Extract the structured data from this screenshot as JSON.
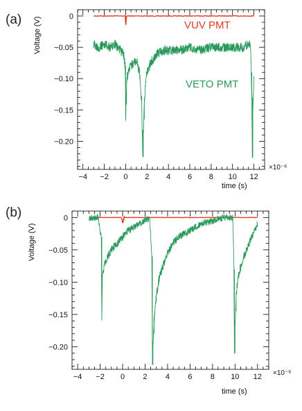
{
  "chart_data": [
    {
      "type": "line",
      "panel_label": "(a)",
      "xlabel": "time (s)",
      "ylabel": "Voltage (V)",
      "x_multiplier": "×10⁻⁶",
      "xlim": [
        -4.5,
        13
      ],
      "ylim": [
        -0.245,
        0.01
      ],
      "x_ticks": [
        -4,
        -2,
        0,
        2,
        4,
        6,
        8,
        10,
        12
      ],
      "x_tick_labels": [
        "−4",
        "−2",
        "0",
        "2",
        "4",
        "6",
        "8",
        "10",
        "12"
      ],
      "y_ticks": [
        0,
        -0.05,
        -0.1,
        -0.15,
        -0.2
      ],
      "y_tick_labels": [
        "0",
        "−0.05",
        "−0.10",
        "−0.15",
        "−0.20"
      ],
      "grid": false,
      "series": [
        {
          "name": "VUV PMT",
          "color": "#e8351e",
          "annotation": "VUV PMT",
          "x": [
            -3.0,
            -0.05,
            0.0,
            0.02,
            0.05,
            0.1,
            12.0
          ],
          "y": [
            0.0,
            0.0,
            -0.012,
            -0.014,
            -0.004,
            0.0,
            0.0
          ]
        },
        {
          "name": "VETO PMT",
          "color": "#2a9a5c",
          "annotation": "VETO PMT",
          "x": [
            -3.0,
            -2.5,
            -2.0,
            -1.5,
            -1.0,
            -0.5,
            -0.2,
            -0.05,
            0.0,
            0.08,
            0.2,
            0.5,
            1.0,
            1.3,
            1.5,
            1.6,
            1.65,
            1.75,
            1.9,
            2.1,
            2.5,
            3.0,
            3.5,
            4.0,
            5.0,
            6.0,
            7.0,
            8.0,
            9.0,
            10.0,
            11.0,
            11.5,
            11.7,
            11.8,
            11.85,
            11.9,
            12.0
          ],
          "y": [
            -0.045,
            -0.05,
            -0.045,
            -0.05,
            -0.045,
            -0.055,
            -0.06,
            -0.08,
            -0.16,
            -0.11,
            -0.09,
            -0.08,
            -0.07,
            -0.09,
            -0.14,
            -0.225,
            -0.19,
            -0.14,
            -0.1,
            -0.085,
            -0.07,
            -0.06,
            -0.055,
            -0.055,
            -0.055,
            -0.05,
            -0.055,
            -0.05,
            -0.05,
            -0.05,
            -0.05,
            -0.045,
            -0.05,
            -0.13,
            -0.225,
            -0.15,
            -0.1
          ]
        }
      ]
    },
    {
      "type": "line",
      "panel_label": "(b)",
      "xlabel": "time (s)",
      "ylabel": "Voltage (V)",
      "x_multiplier": "×10⁻⁶",
      "xlim": [
        -4.5,
        13
      ],
      "ylim": [
        -0.235,
        0.01
      ],
      "x_ticks": [
        -4,
        -2,
        0,
        2,
        4,
        6,
        8,
        10,
        12
      ],
      "x_tick_labels": [
        "−4",
        "−2",
        "0",
        "2",
        "4",
        "6",
        "8",
        "10",
        "12"
      ],
      "y_ticks": [
        0,
        -0.05,
        -0.1,
        -0.15,
        -0.2
      ],
      "y_tick_labels": [
        "0",
        "−0.05",
        "−0.10",
        "−0.15",
        "−0.20"
      ],
      "grid": false,
      "series": [
        {
          "name": "VUV PMT",
          "color": "#e8351e",
          "x": [
            -3.0,
            -0.1,
            0.0,
            0.05,
            0.1,
            12.0
          ],
          "y": [
            0.0,
            0.0,
            -0.008,
            -0.006,
            0.0,
            0.0
          ],
          "burst": [
            0.02,
            0.2
          ]
        },
        {
          "name": "VETO PMT",
          "color": "#2a9a5c",
          "x": [
            -3.0,
            -2.2,
            -1.9,
            -1.85,
            -1.8,
            -1.6,
            -1.3,
            -1.0,
            -0.5,
            0.0,
            0.5,
            1.0,
            1.5,
            2.0,
            2.4,
            2.6,
            2.65,
            2.7,
            2.8,
            3.0,
            3.3,
            3.7,
            4.0,
            4.5,
            5.0,
            6.0,
            7.0,
            8.0,
            9.0,
            9.8,
            9.9,
            9.95,
            10.0,
            10.1,
            10.3,
            10.6,
            11.0,
            11.5,
            12.0
          ],
          "y": [
            0.0,
            0.0,
            -0.03,
            -0.158,
            -0.09,
            -0.07,
            -0.06,
            -0.05,
            -0.04,
            -0.03,
            -0.02,
            -0.015,
            -0.01,
            -0.005,
            0.0,
            -0.06,
            -0.228,
            -0.2,
            -0.16,
            -0.12,
            -0.09,
            -0.07,
            -0.055,
            -0.04,
            -0.03,
            -0.02,
            -0.01,
            -0.005,
            0.0,
            0.0,
            -0.08,
            -0.21,
            -0.17,
            -0.12,
            -0.09,
            -0.07,
            -0.05,
            -0.03,
            -0.01
          ]
        }
      ]
    }
  ]
}
